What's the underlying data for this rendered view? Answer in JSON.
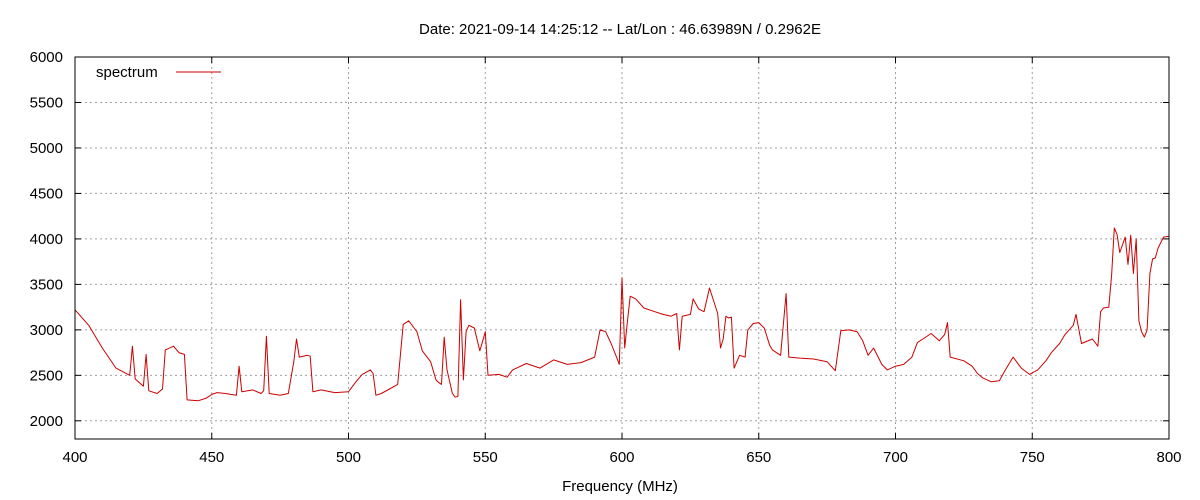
{
  "chart_data": {
    "type": "line",
    "title": "Date: 2021-09-14 14:25:12  --  Lat/Lon : 46.63989N / 0.2962E",
    "xlabel": "Frequency (MHz)",
    "ylabel": "",
    "xlim": [
      400,
      800
    ],
    "ylim": [
      1800,
      6000
    ],
    "x_ticks": [
      400,
      450,
      500,
      550,
      600,
      650,
      700,
      750,
      800
    ],
    "y_ticks": [
      2000,
      2500,
      3000,
      3500,
      4000,
      4500,
      5000,
      5500,
      6000
    ],
    "grid": true,
    "legend": "top-left",
    "series": [
      {
        "name": "spectrum",
        "color": "#cc0000",
        "points": [
          [
            400,
            3220
          ],
          [
            405,
            3050
          ],
          [
            410,
            2800
          ],
          [
            415,
            2580
          ],
          [
            420,
            2500
          ],
          [
            421,
            2820
          ],
          [
            422,
            2460
          ],
          [
            425,
            2380
          ],
          [
            426,
            2730
          ],
          [
            427,
            2330
          ],
          [
            430,
            2300
          ],
          [
            432,
            2350
          ],
          [
            433,
            2780
          ],
          [
            436,
            2820
          ],
          [
            438,
            2750
          ],
          [
            440,
            2730
          ],
          [
            441,
            2230
          ],
          [
            445,
            2220
          ],
          [
            448,
            2250
          ],
          [
            450,
            2290
          ],
          [
            452,
            2310
          ],
          [
            455,
            2300
          ],
          [
            459,
            2280
          ],
          [
            460,
            2600
          ],
          [
            461,
            2320
          ],
          [
            465,
            2340
          ],
          [
            468,
            2300
          ],
          [
            469,
            2330
          ],
          [
            470,
            2930
          ],
          [
            471,
            2300
          ],
          [
            475,
            2280
          ],
          [
            478,
            2300
          ],
          [
            480,
            2650
          ],
          [
            481,
            2900
          ],
          [
            482,
            2700
          ],
          [
            485,
            2720
          ],
          [
            486,
            2710
          ],
          [
            487,
            2320
          ],
          [
            490,
            2340
          ],
          [
            495,
            2310
          ],
          [
            500,
            2320
          ],
          [
            503,
            2440
          ],
          [
            505,
            2510
          ],
          [
            508,
            2560
          ],
          [
            509,
            2520
          ],
          [
            510,
            2280
          ],
          [
            512,
            2300
          ],
          [
            515,
            2350
          ],
          [
            518,
            2400
          ],
          [
            520,
            3060
          ],
          [
            522,
            3100
          ],
          [
            524,
            3020
          ],
          [
            525,
            2980
          ],
          [
            527,
            2770
          ],
          [
            530,
            2650
          ],
          [
            532,
            2450
          ],
          [
            533,
            2420
          ],
          [
            534,
            2400
          ],
          [
            535,
            2920
          ],
          [
            536,
            2560
          ],
          [
            538,
            2300
          ],
          [
            539,
            2260
          ],
          [
            540,
            2270
          ],
          [
            541,
            3330
          ],
          [
            542,
            2450
          ],
          [
            543,
            2980
          ],
          [
            544,
            3050
          ],
          [
            546,
            3020
          ],
          [
            548,
            2770
          ],
          [
            549,
            2870
          ],
          [
            550,
            2980
          ],
          [
            551,
            2500
          ],
          [
            555,
            2510
          ],
          [
            558,
            2480
          ],
          [
            560,
            2560
          ],
          [
            565,
            2630
          ],
          [
            570,
            2580
          ],
          [
            575,
            2670
          ],
          [
            580,
            2620
          ],
          [
            585,
            2640
          ],
          [
            590,
            2700
          ],
          [
            592,
            3000
          ],
          [
            594,
            2980
          ],
          [
            596,
            2850
          ],
          [
            598,
            2700
          ],
          [
            599,
            2620
          ],
          [
            600,
            3570
          ],
          [
            601,
            2800
          ],
          [
            602,
            3100
          ],
          [
            603,
            3370
          ],
          [
            605,
            3340
          ],
          [
            608,
            3240
          ],
          [
            612,
            3200
          ],
          [
            615,
            3170
          ],
          [
            618,
            3150
          ],
          [
            620,
            3180
          ],
          [
            621,
            2780
          ],
          [
            622,
            3150
          ],
          [
            625,
            3170
          ],
          [
            626,
            3340
          ],
          [
            628,
            3230
          ],
          [
            630,
            3200
          ],
          [
            632,
            3460
          ],
          [
            635,
            3180
          ],
          [
            636,
            2800
          ],
          [
            637,
            2900
          ],
          [
            638,
            3150
          ],
          [
            639,
            3130
          ],
          [
            640,
            3140
          ],
          [
            641,
            2580
          ],
          [
            643,
            2720
          ],
          [
            645,
            2700
          ],
          [
            646,
            3000
          ],
          [
            648,
            3070
          ],
          [
            650,
            3080
          ],
          [
            652,
            3020
          ],
          [
            654,
            2830
          ],
          [
            655,
            2780
          ],
          [
            658,
            2720
          ],
          [
            660,
            3400
          ],
          [
            661,
            2700
          ],
          [
            665,
            2690
          ],
          [
            670,
            2680
          ],
          [
            675,
            2650
          ],
          [
            678,
            2550
          ],
          [
            680,
            2990
          ],
          [
            683,
            3000
          ],
          [
            686,
            2980
          ],
          [
            688,
            2880
          ],
          [
            690,
            2720
          ],
          [
            692,
            2800
          ],
          [
            695,
            2620
          ],
          [
            697,
            2560
          ],
          [
            700,
            2600
          ],
          [
            703,
            2620
          ],
          [
            706,
            2700
          ],
          [
            708,
            2860
          ],
          [
            710,
            2900
          ],
          [
            713,
            2960
          ],
          [
            716,
            2880
          ],
          [
            718,
            2950
          ],
          [
            719,
            3080
          ],
          [
            720,
            2700
          ],
          [
            725,
            2660
          ],
          [
            728,
            2600
          ],
          [
            730,
            2520
          ],
          [
            732,
            2470
          ],
          [
            735,
            2430
          ],
          [
            738,
            2440
          ],
          [
            740,
            2550
          ],
          [
            743,
            2700
          ],
          [
            746,
            2580
          ],
          [
            749,
            2510
          ],
          [
            752,
            2560
          ],
          [
            755,
            2660
          ],
          [
            757,
            2750
          ],
          [
            760,
            2850
          ],
          [
            762,
            2950
          ],
          [
            765,
            3050
          ],
          [
            766,
            3170
          ],
          [
            768,
            2850
          ],
          [
            772,
            2900
          ],
          [
            774,
            2820
          ],
          [
            775,
            3200
          ],
          [
            776,
            3240
          ],
          [
            778,
            3250
          ],
          [
            779,
            3600
          ],
          [
            780,
            4120
          ],
          [
            781,
            4050
          ],
          [
            782,
            3850
          ],
          [
            784,
            4020
          ],
          [
            785,
            3720
          ],
          [
            786,
            4040
          ],
          [
            787,
            3620
          ],
          [
            788,
            4000
          ],
          [
            789,
            3100
          ],
          [
            790,
            2980
          ],
          [
            791,
            2920
          ],
          [
            792,
            3000
          ],
          [
            793,
            3620
          ],
          [
            794,
            3780
          ],
          [
            795,
            3790
          ],
          [
            796,
            3900
          ],
          [
            798,
            4020
          ],
          [
            800,
            4030
          ]
        ]
      }
    ]
  }
}
